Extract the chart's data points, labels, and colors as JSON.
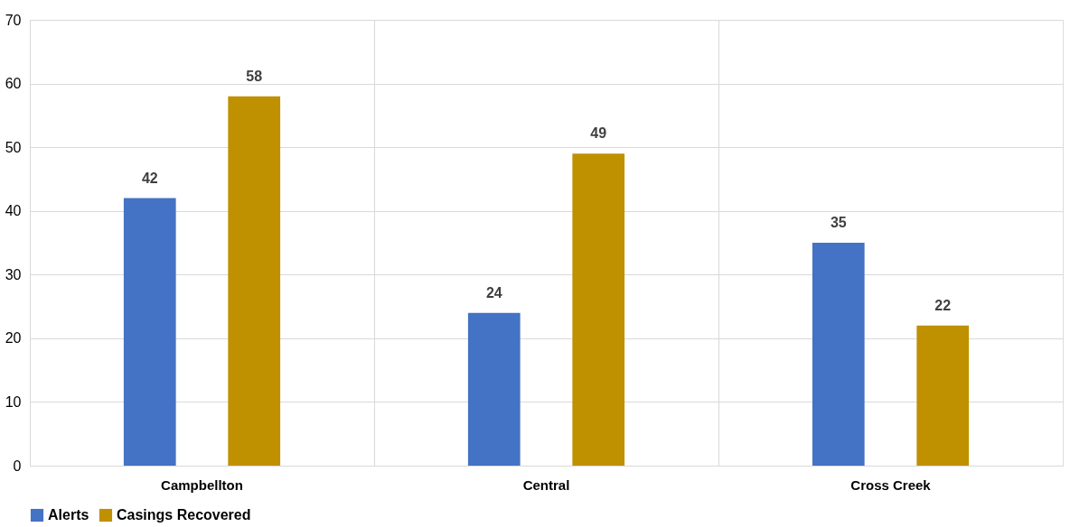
{
  "chart_data": {
    "type": "bar",
    "categories": [
      "Campbellton",
      "Central",
      "Cross Creek"
    ],
    "series": [
      {
        "name": "Alerts",
        "color": "#4472c4",
        "values": [
          42,
          24,
          35
        ]
      },
      {
        "name": "Casings Recovered",
        "color": "#bf9000",
        "values": [
          58,
          49,
          22
        ]
      }
    ],
    "ylim": [
      0,
      70
    ],
    "yticks": [
      0,
      10,
      20,
      30,
      40,
      50,
      60,
      70
    ],
    "grid": true,
    "legend": "bottom",
    "data_labels": true
  }
}
